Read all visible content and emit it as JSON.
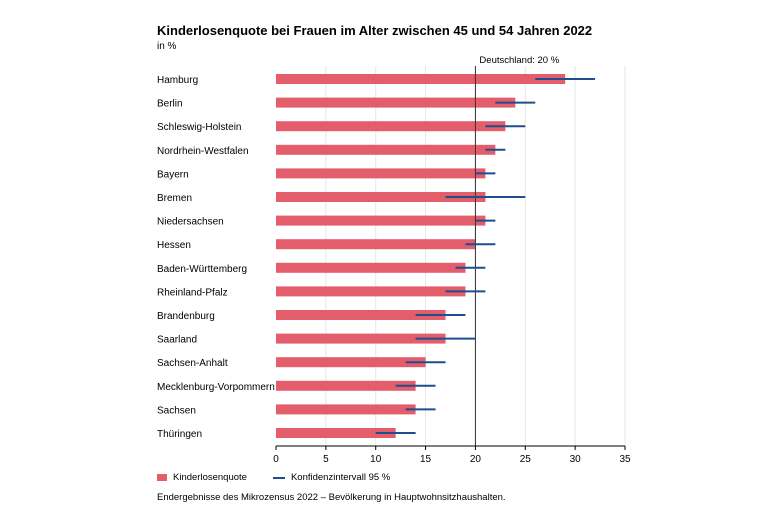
{
  "title": "Kinderlosenquote bei Frauen im Alter zwischen 45 und 54 Jahren 2022",
  "subtitle": "in %",
  "footnote": "Endergebnisse des Mikrozensus 2022 – Bevölkerung in Hauptwohnsitzhaushalten.",
  "legend": {
    "bar_label": "Kinderlosenquote",
    "ci_label": "Konfidenzintervall 95 %"
  },
  "colors": {
    "bar": "#e35d6a",
    "ci": "#1f4e8c",
    "grid": "#e6e6e6",
    "reference": "#333333"
  },
  "chart_data": {
    "type": "bar",
    "orientation": "horizontal",
    "categories": [
      "Hamburg",
      "Berlin",
      "Schleswig-Holstein",
      "Nordrhein-Westfalen",
      "Bayern",
      "Bremen",
      "Niedersachsen",
      "Hessen",
      "Baden-Württemberg",
      "Rheinland-Pfalz",
      "Brandenburg",
      "Saarland",
      "Sachsen-Anhalt",
      "Mecklenburg-Vorpommern",
      "Sachsen",
      "Thüringen"
    ],
    "series": [
      {
        "name": "Kinderlosenquote",
        "values": [
          29,
          24,
          23,
          22,
          21,
          21,
          21,
          20,
          19,
          19,
          17,
          17,
          15,
          14,
          14,
          12
        ]
      },
      {
        "name": "Konfidenzintervall 95 %",
        "low": [
          26,
          22,
          21,
          21,
          20,
          17,
          20,
          19,
          18,
          17,
          14,
          14,
          13,
          12,
          13,
          10
        ],
        "high": [
          32,
          26,
          25,
          23,
          22,
          25,
          22,
          22,
          21,
          21,
          19,
          20,
          17,
          16,
          16,
          14
        ]
      }
    ],
    "xlim": [
      0,
      35
    ],
    "xticks": [
      "0",
      "5",
      "10",
      "15",
      "20",
      "25",
      "30",
      "35"
    ],
    "grid": true,
    "reference_line": {
      "value": 20,
      "label": "Deutschland: 20 %"
    },
    "legend_position": "bottom-left"
  }
}
